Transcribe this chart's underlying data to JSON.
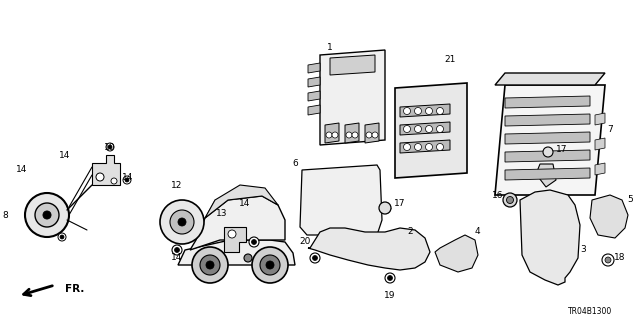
{
  "bg_color": "#ffffff",
  "diagram_code": "TR04B1300",
  "figsize": [
    6.4,
    3.19
  ],
  "dpi": 100
}
